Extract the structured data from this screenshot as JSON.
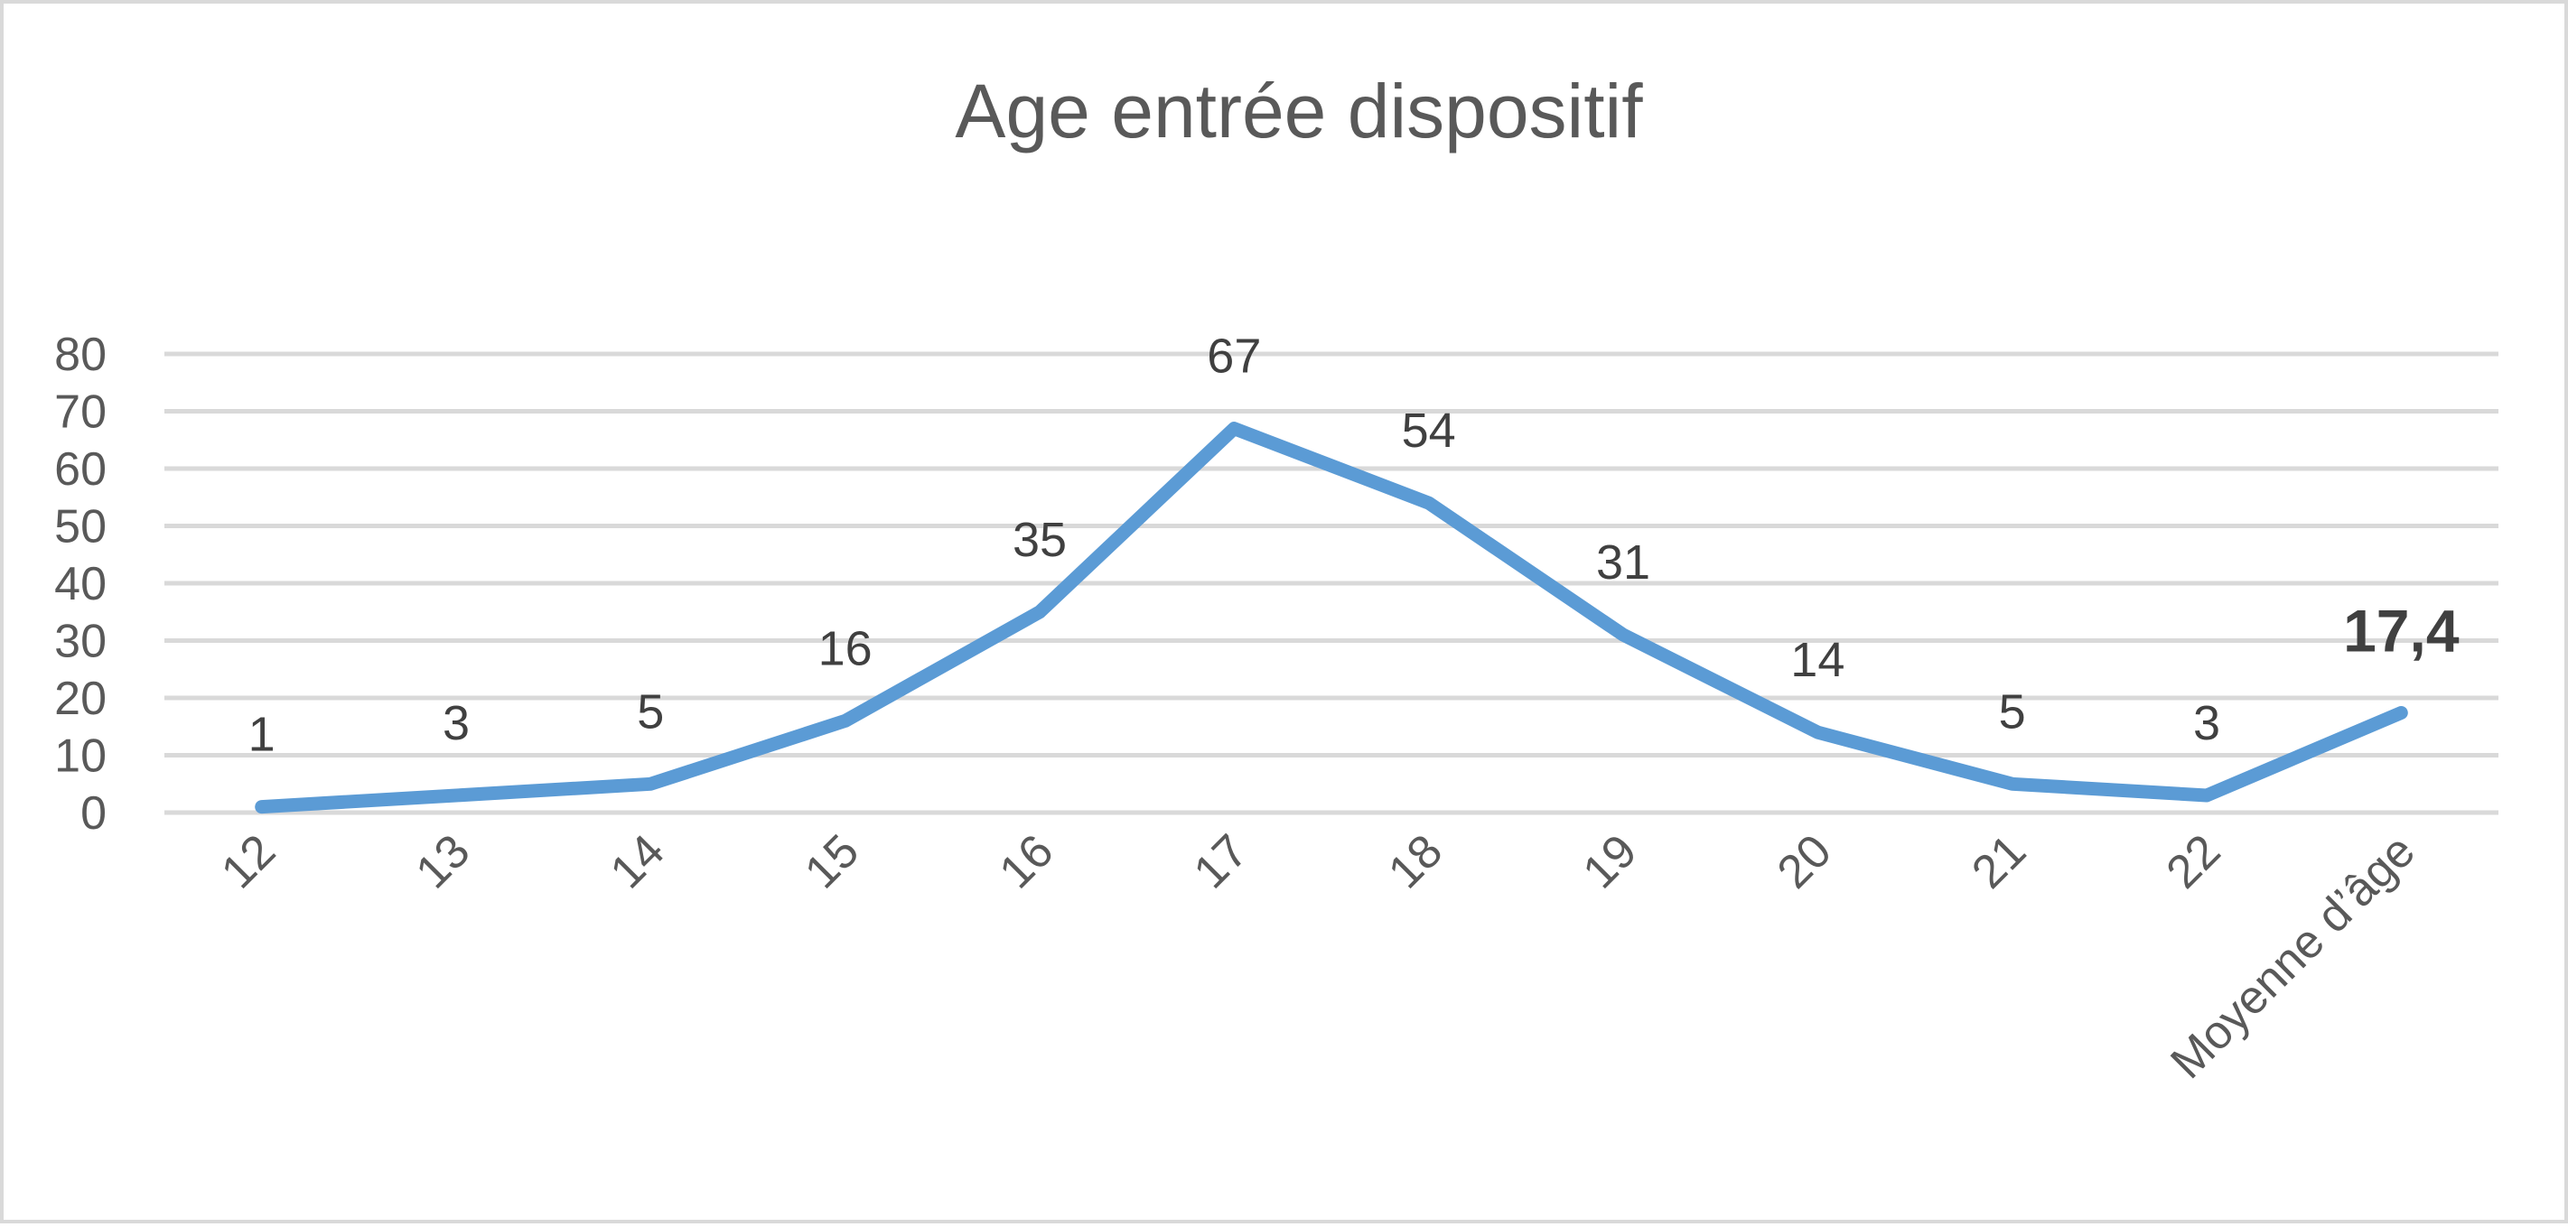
{
  "chart_data": {
    "type": "line",
    "title": "Age entrée dispositif",
    "categories": [
      "12",
      "13",
      "14",
      "15",
      "16",
      "17",
      "18",
      "19",
      "20",
      "21",
      "22",
      "Moyenne d’âge"
    ],
    "series": [
      {
        "values": [
          1,
          3,
          5,
          16,
          35,
          67,
          54,
          31,
          14,
          5,
          3,
          17.4
        ],
        "data_labels": [
          "1",
          "3",
          "5",
          "16",
          "35",
          "67",
          "54",
          "31",
          "14",
          "5",
          "3",
          "17,4"
        ],
        "color": "#5b9bd5"
      }
    ],
    "highlight_label_index": 11,
    "highlight_color": "#c00000",
    "ylim": [
      0,
      80
    ],
    "yticks": [
      0,
      10,
      20,
      30,
      40,
      50,
      60,
      70,
      80
    ],
    "grid": true,
    "legend": "none"
  }
}
